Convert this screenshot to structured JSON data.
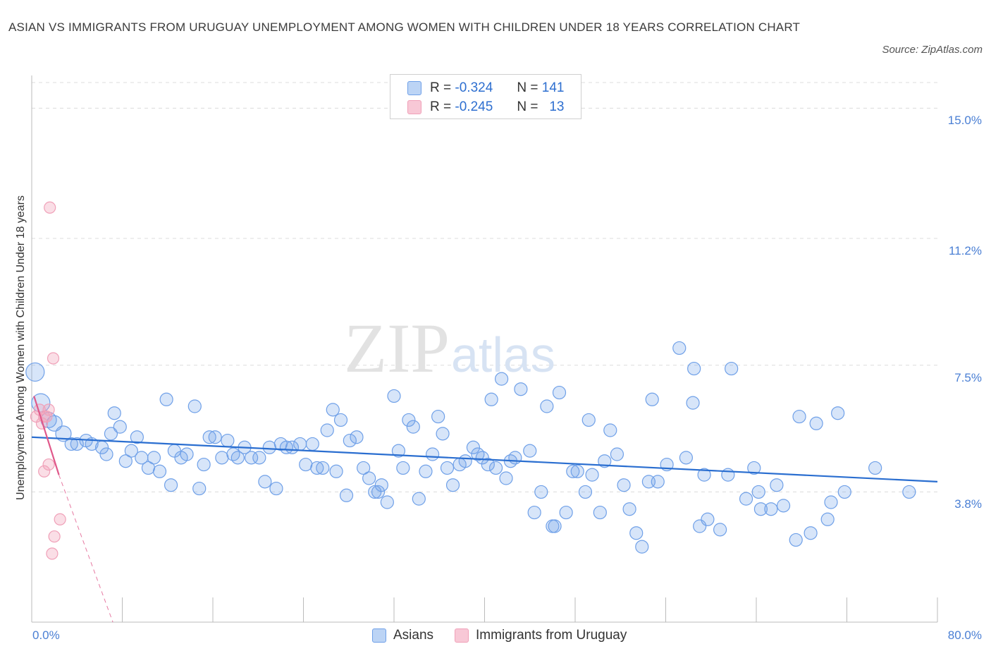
{
  "title": "ASIAN VS IMMIGRANTS FROM URUGUAY UNEMPLOYMENT AMONG WOMEN WITH CHILDREN UNDER 18 YEARS CORRELATION CHART",
  "source": "Source: ZipAtlas.com",
  "watermark": {
    "zip": "ZIP",
    "atlas": "atlas"
  },
  "legend": {
    "rows": [
      {
        "r_label": "R =",
        "r_value": "-0.324",
        "n_label": "N =",
        "n_value": "141"
      },
      {
        "r_label": "R =",
        "r_value": "-0.245",
        "n_label": "N =",
        "n_value": "13"
      }
    ]
  },
  "chart_data": {
    "type": "scatter",
    "title": "ASIAN VS IMMIGRANTS FROM URUGUAY UNEMPLOYMENT AMONG WOMEN WITH CHILDREN UNDER 18 YEARS CORRELATION CHART",
    "xlabel": "",
    "ylabel": "Unemployment Among Women with Children Under 18 years",
    "xlim": [
      0,
      80
    ],
    "ylim": [
      0,
      15.75
    ],
    "x_tick_labels": [
      "0.0%",
      "80.0%"
    ],
    "y_tick_values": [
      3.8,
      7.5,
      11.2,
      15.0
    ],
    "y_tick_labels": [
      "3.8%",
      "7.5%",
      "11.2%",
      "15.0%"
    ],
    "grid": true,
    "legend_position": "top-center",
    "colors": {
      "asians": "#6fa0e8",
      "uruguay": "#f0a0b8",
      "asians_line": "#2a6ed0",
      "uruguay_line": "#e0588a"
    },
    "series": [
      {
        "name": "Asians",
        "r": -0.324,
        "n": 141,
        "trend": {
          "x": [
            0,
            80
          ],
          "y": [
            5.4,
            4.1
          ]
        },
        "points": [
          [
            0.3,
            7.3
          ],
          [
            0.8,
            6.4
          ],
          [
            1.5,
            5.9
          ],
          [
            2.0,
            5.8
          ],
          [
            2.8,
            5.5
          ],
          [
            3.5,
            5.2
          ],
          [
            4.0,
            5.2
          ],
          [
            4.8,
            5.3
          ],
          [
            5.3,
            5.2
          ],
          [
            6.2,
            5.1
          ],
          [
            6.6,
            4.9
          ],
          [
            7.0,
            5.5
          ],
          [
            7.3,
            6.1
          ],
          [
            7.8,
            5.7
          ],
          [
            8.3,
            4.7
          ],
          [
            8.8,
            5.0
          ],
          [
            9.3,
            5.4
          ],
          [
            9.7,
            4.8
          ],
          [
            10.3,
            4.5
          ],
          [
            10.8,
            4.8
          ],
          [
            11.3,
            4.4
          ],
          [
            11.9,
            6.5
          ],
          [
            12.3,
            4.0
          ],
          [
            12.6,
            5.0
          ],
          [
            13.2,
            4.8
          ],
          [
            13.7,
            4.9
          ],
          [
            14.4,
            6.3
          ],
          [
            14.8,
            3.9
          ],
          [
            15.2,
            4.6
          ],
          [
            15.7,
            5.4
          ],
          [
            16.2,
            5.4
          ],
          [
            16.8,
            4.8
          ],
          [
            17.3,
            5.3
          ],
          [
            17.8,
            4.9
          ],
          [
            18.2,
            4.8
          ],
          [
            18.8,
            5.1
          ],
          [
            19.4,
            4.8
          ],
          [
            20.1,
            4.8
          ],
          [
            20.6,
            4.1
          ],
          [
            21.0,
            5.1
          ],
          [
            21.6,
            3.9
          ],
          [
            22.0,
            5.2
          ],
          [
            22.5,
            5.1
          ],
          [
            23.0,
            5.1
          ],
          [
            23.7,
            5.2
          ],
          [
            24.2,
            4.6
          ],
          [
            24.8,
            5.2
          ],
          [
            25.2,
            4.5
          ],
          [
            25.7,
            4.5
          ],
          [
            26.1,
            5.6
          ],
          [
            26.6,
            6.2
          ],
          [
            26.9,
            4.4
          ],
          [
            27.3,
            5.9
          ],
          [
            27.8,
            3.7
          ],
          [
            28.1,
            5.3
          ],
          [
            28.7,
            5.4
          ],
          [
            29.3,
            4.5
          ],
          [
            29.8,
            4.2
          ],
          [
            30.3,
            3.8
          ],
          [
            30.6,
            3.8
          ],
          [
            30.9,
            4.0
          ],
          [
            31.4,
            3.5
          ],
          [
            32.0,
            6.6
          ],
          [
            32.4,
            5.0
          ],
          [
            32.8,
            4.5
          ],
          [
            33.3,
            5.9
          ],
          [
            33.7,
            5.7
          ],
          [
            34.2,
            3.6
          ],
          [
            34.8,
            4.4
          ],
          [
            35.4,
            4.9
          ],
          [
            35.9,
            6.0
          ],
          [
            36.3,
            5.5
          ],
          [
            36.7,
            4.5
          ],
          [
            37.2,
            4.0
          ],
          [
            37.8,
            4.6
          ],
          [
            38.3,
            4.7
          ],
          [
            39.0,
            5.1
          ],
          [
            39.4,
            4.9
          ],
          [
            39.8,
            4.8
          ],
          [
            40.3,
            4.6
          ],
          [
            40.6,
            6.5
          ],
          [
            41.0,
            4.5
          ],
          [
            41.5,
            7.1
          ],
          [
            41.9,
            4.2
          ],
          [
            42.3,
            4.7
          ],
          [
            42.7,
            4.8
          ],
          [
            43.2,
            6.8
          ],
          [
            44.0,
            5.0
          ],
          [
            44.4,
            3.2
          ],
          [
            45.0,
            3.8
          ],
          [
            45.5,
            6.3
          ],
          [
            46.0,
            2.8
          ],
          [
            46.2,
            2.8
          ],
          [
            46.6,
            6.7
          ],
          [
            47.2,
            3.2
          ],
          [
            47.8,
            4.4
          ],
          [
            48.2,
            4.4
          ],
          [
            48.9,
            3.8
          ],
          [
            49.2,
            5.9
          ],
          [
            49.5,
            4.3
          ],
          [
            50.2,
            3.2
          ],
          [
            50.6,
            4.7
          ],
          [
            51.1,
            5.6
          ],
          [
            51.7,
            4.9
          ],
          [
            52.3,
            4.0
          ],
          [
            52.8,
            3.3
          ],
          [
            53.4,
            2.6
          ],
          [
            53.9,
            2.2
          ],
          [
            54.5,
            4.1
          ],
          [
            54.8,
            6.5
          ],
          [
            55.3,
            4.1
          ],
          [
            56.1,
            4.6
          ],
          [
            57.2,
            8.0
          ],
          [
            57.8,
            4.8
          ],
          [
            58.4,
            6.4
          ],
          [
            59.0,
            2.8
          ],
          [
            59.7,
            3.0
          ],
          [
            60.8,
            2.7
          ],
          [
            61.5,
            4.3
          ],
          [
            61.8,
            7.4
          ],
          [
            63.1,
            3.6
          ],
          [
            64.2,
            3.8
          ],
          [
            64.4,
            3.3
          ],
          [
            65.3,
            3.3
          ],
          [
            65.8,
            4.0
          ],
          [
            66.4,
            3.4
          ],
          [
            67.5,
            2.4
          ],
          [
            67.8,
            6.0
          ],
          [
            68.8,
            2.6
          ],
          [
            69.3,
            5.8
          ],
          [
            70.3,
            3.0
          ],
          [
            70.6,
            3.5
          ],
          [
            71.2,
            6.1
          ],
          [
            71.8,
            3.8
          ],
          [
            74.5,
            4.5
          ],
          [
            77.5,
            3.8
          ],
          [
            58.5,
            7.4
          ],
          [
            59.4,
            4.3
          ],
          [
            63.8,
            4.5
          ]
        ]
      },
      {
        "name": "Immigrants from Uruguay",
        "r": -0.245,
        "n": 13,
        "trend": {
          "x": [
            0.2,
            2.4
          ],
          "y": [
            6.6,
            4.3
          ]
        },
        "trend_extended": {
          "x": [
            2.4,
            7.5
          ],
          "y": [
            4.3,
            -0.3
          ]
        },
        "points": [
          [
            0.4,
            6.0
          ],
          [
            0.7,
            6.2
          ],
          [
            0.9,
            5.8
          ],
          [
            1.1,
            6.0
          ],
          [
            1.3,
            6.0
          ],
          [
            1.5,
            6.2
          ],
          [
            1.1,
            4.4
          ],
          [
            1.5,
            4.6
          ],
          [
            1.6,
            12.1
          ],
          [
            1.8,
            2.0
          ],
          [
            1.9,
            7.7
          ],
          [
            2.0,
            2.5
          ],
          [
            2.5,
            3.0
          ]
        ]
      }
    ]
  }
}
